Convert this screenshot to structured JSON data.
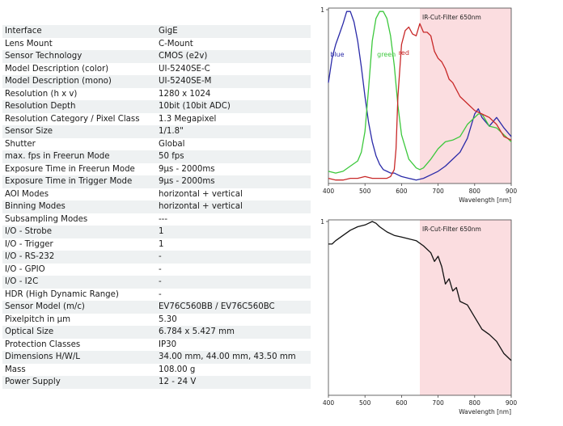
{
  "specs": [
    {
      "label": "Interface",
      "value": "GigE"
    },
    {
      "label": "Lens Mount",
      "value": "C-Mount"
    },
    {
      "label": "Sensor Technology",
      "value": "CMOS (e2v)"
    },
    {
      "label": "Model Description (color)",
      "value": "UI-5240SE-C"
    },
    {
      "label": "Model Description (mono)",
      "value": "UI-5240SE-M"
    },
    {
      "label": "Resolution (h x v)",
      "value": "1280 x 1024"
    },
    {
      "label": "Resolution Depth",
      "value": "10bit (10bit ADC)"
    },
    {
      "label": "Resolution Category / Pixel Class",
      "value": "1.3 Megapixel"
    },
    {
      "label": "Sensor Size",
      "value": "1/1.8\""
    },
    {
      "label": "Shutter",
      "value": "Global"
    },
    {
      "label": "max. fps in Freerun Mode",
      "value": "50 fps"
    },
    {
      "label": "Exposure Time in Freerun Mode",
      "value": "9µs - 2000ms"
    },
    {
      "label": "Exposure Time in Trigger Mode",
      "value": "9µs - 2000ms"
    },
    {
      "label": "AOI Modes",
      "value": "horizontal + vertical"
    },
    {
      "label": "Binning Modes",
      "value": "horizontal + vertical"
    },
    {
      "label": "Subsampling Modes",
      "value": "---"
    },
    {
      "label": "I/O - Strobe",
      "value": "1"
    },
    {
      "label": "I/O - Trigger",
      "value": "1"
    },
    {
      "label": "I/O - RS-232",
      "value": "-"
    },
    {
      "label": "I/O - GPIO",
      "value": "-"
    },
    {
      "label": "I/O - I2C",
      "value": "-"
    },
    {
      "label": "HDR (High Dynamic Range)",
      "value": "-"
    },
    {
      "label": "Sensor Model (m/c)",
      "value": "EV76C560BB / EV76C560BC"
    },
    {
      "label": "Pixelpitch in µm",
      "value": "5.30"
    },
    {
      "label": "Optical Size",
      "value": "6.784 x 5.427 mm"
    },
    {
      "label": "Protection Classes",
      "value": "IP30"
    },
    {
      "label": "Dimensions H/W/L",
      "value": "34.00 mm, 44.00 mm, 43.50 mm"
    },
    {
      "label": "Mass",
      "value": "108.00 g"
    },
    {
      "label": "Power Supply",
      "value": "12 - 24 V"
    }
  ],
  "colors": {
    "blue": "#2a2aa8",
    "green": "#3cc83c",
    "red": "#c82828",
    "mono": "#111111",
    "filter_band": "#fbdde0",
    "row_alt": "#eef1f2"
  },
  "chart_data": [
    {
      "type": "line",
      "xlabel": "Wavelength [nm]",
      "ylabel": "",
      "xlim": [
        400,
        900
      ],
      "ylim": [
        0,
        1
      ],
      "x_ticks": [
        400,
        500,
        600,
        700,
        800,
        900
      ],
      "y_ticks": [
        1
      ],
      "grid": false,
      "annotation": "IR-Cut-Filter 650nm",
      "shaded_region": [
        650,
        900
      ],
      "series": [
        {
          "name": "blue",
          "label_pos": [
            405,
            0.73
          ],
          "x": [
            400,
            410,
            420,
            430,
            440,
            450,
            460,
            470,
            480,
            490,
            500,
            510,
            520,
            530,
            540,
            550,
            560,
            570,
            580,
            590,
            600,
            620,
            640,
            660,
            680,
            700,
            720,
            740,
            760,
            780,
            800,
            810,
            820,
            840,
            860,
            880,
            900
          ],
          "y": [
            0.58,
            0.72,
            0.8,
            0.86,
            0.92,
            0.99,
            0.99,
            0.93,
            0.82,
            0.67,
            0.5,
            0.35,
            0.24,
            0.16,
            0.11,
            0.08,
            0.07,
            0.06,
            0.06,
            0.05,
            0.04,
            0.03,
            0.02,
            0.03,
            0.05,
            0.07,
            0.1,
            0.14,
            0.18,
            0.26,
            0.4,
            0.43,
            0.38,
            0.33,
            0.38,
            0.32,
            0.27
          ]
        },
        {
          "name": "green",
          "label_pos": [
            533,
            0.73
          ],
          "x": [
            400,
            420,
            440,
            460,
            480,
            490,
            500,
            510,
            520,
            530,
            540,
            550,
            560,
            570,
            580,
            590,
            600,
            620,
            640,
            650,
            660,
            680,
            700,
            720,
            740,
            760,
            780,
            800,
            810,
            820,
            840,
            860,
            880,
            900
          ],
          "y": [
            0.07,
            0.06,
            0.07,
            0.1,
            0.13,
            0.18,
            0.3,
            0.55,
            0.82,
            0.95,
            0.99,
            0.99,
            0.95,
            0.85,
            0.68,
            0.45,
            0.28,
            0.14,
            0.09,
            0.08,
            0.09,
            0.14,
            0.2,
            0.24,
            0.25,
            0.27,
            0.34,
            0.38,
            0.4,
            0.4,
            0.33,
            0.32,
            0.28,
            0.24
          ]
        },
        {
          "name": "red",
          "label_pos": [
            592,
            0.74
          ],
          "x": [
            400,
            420,
            440,
            460,
            480,
            500,
            520,
            540,
            560,
            570,
            580,
            585,
            590,
            600,
            610,
            620,
            630,
            640,
            650,
            660,
            670,
            680,
            690,
            700,
            710,
            720,
            730,
            740,
            760,
            780,
            800,
            820,
            840,
            860,
            880,
            900
          ],
          "y": [
            0.03,
            0.02,
            0.02,
            0.03,
            0.03,
            0.04,
            0.03,
            0.03,
            0.03,
            0.04,
            0.08,
            0.2,
            0.5,
            0.8,
            0.88,
            0.9,
            0.86,
            0.85,
            0.92,
            0.87,
            0.87,
            0.85,
            0.76,
            0.72,
            0.7,
            0.66,
            0.6,
            0.58,
            0.5,
            0.46,
            0.42,
            0.4,
            0.38,
            0.34,
            0.27,
            0.25
          ]
        }
      ]
    },
    {
      "type": "line",
      "xlabel": "Wavelength [nm]",
      "ylabel": "",
      "xlim": [
        400,
        900
      ],
      "ylim": [
        0,
        1
      ],
      "x_ticks": [
        400,
        500,
        600,
        700,
        800,
        900
      ],
      "y_ticks": [
        1
      ],
      "grid": false,
      "annotation": "IR-Cut-Filter 650nm",
      "shaded_region": [
        650,
        900
      ],
      "series": [
        {
          "name": "",
          "x": [
            400,
            410,
            420,
            440,
            460,
            480,
            500,
            510,
            520,
            530,
            540,
            560,
            580,
            600,
            620,
            640,
            660,
            680,
            690,
            700,
            710,
            720,
            730,
            740,
            750,
            760,
            780,
            800,
            820,
            840,
            860,
            880,
            900
          ],
          "y": [
            0.87,
            0.87,
            0.89,
            0.92,
            0.95,
            0.97,
            0.98,
            0.99,
            1.0,
            0.99,
            0.97,
            0.94,
            0.92,
            0.91,
            0.9,
            0.89,
            0.86,
            0.82,
            0.77,
            0.8,
            0.74,
            0.64,
            0.67,
            0.6,
            0.62,
            0.54,
            0.52,
            0.45,
            0.38,
            0.35,
            0.31,
            0.24,
            0.2
          ]
        }
      ]
    }
  ]
}
